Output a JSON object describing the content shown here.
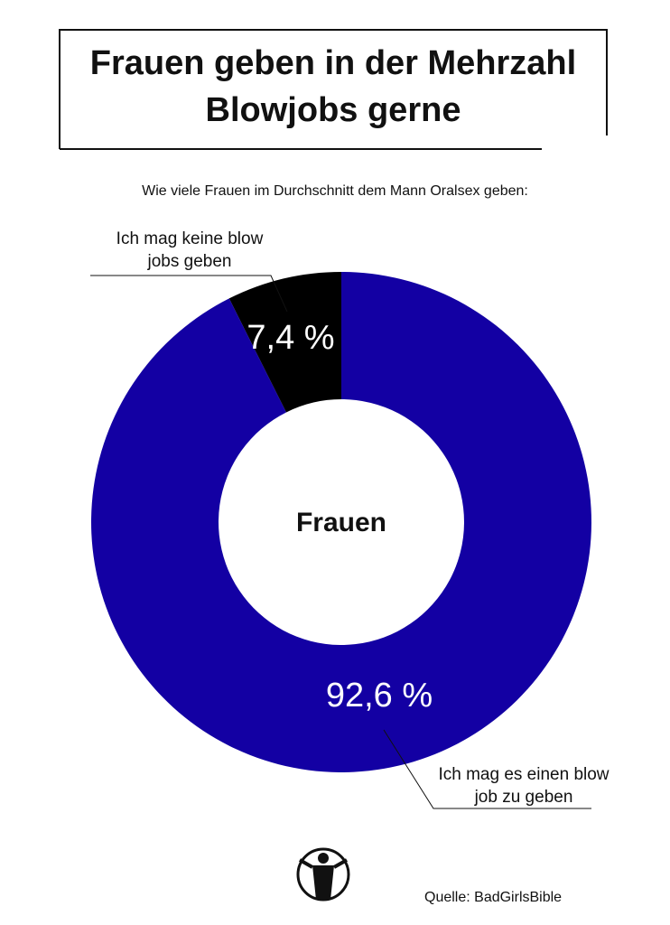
{
  "chart_data": {
    "type": "pie",
    "title": "Frauen geben in der Mehrzahl Blowjobs gerne",
    "subtitle": "Wie viele Frauen im Durchschnitt dem Mann Oralsex geben:",
    "center_label": "Frauen",
    "categories": [
      "Ich mag es einen blow job zu geben",
      "Ich mag keine blow jobs geben"
    ],
    "values": [
      92.6,
      7.4
    ],
    "value_labels": [
      "92,6 %",
      "7,4 %"
    ],
    "colors": [
      "#1300a3",
      "#000000"
    ],
    "source": "Quelle: BadGirlsBible"
  }
}
